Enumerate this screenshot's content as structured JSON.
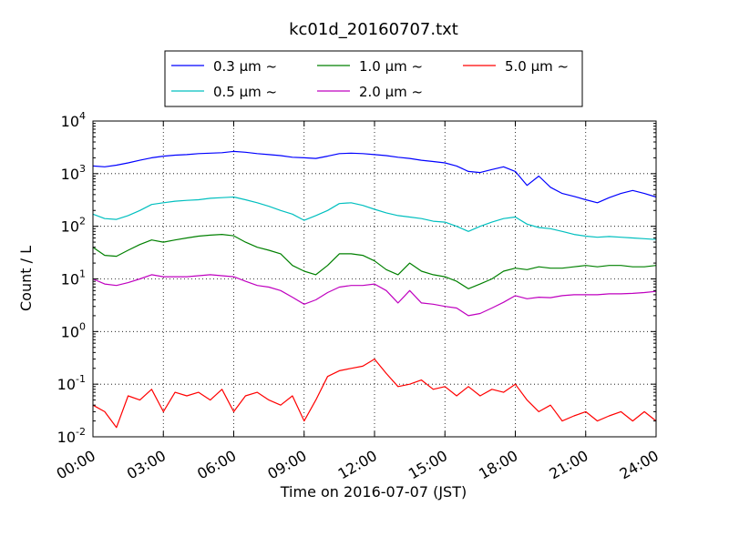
{
  "chart_data": {
    "type": "line",
    "title": "kc01d_20160707.txt",
    "xlabel": "Time on 2016-07-07 (JST)",
    "ylabel": "Count / L",
    "x_unit": "hours",
    "xlim": [
      0,
      24
    ],
    "ylim": [
      0.01,
      10000
    ],
    "yscale": "log",
    "grid": true,
    "legend_position": "top",
    "x_ticks": [
      {
        "value": 0,
        "label": "00:00"
      },
      {
        "value": 3,
        "label": "03:00"
      },
      {
        "value": 6,
        "label": "06:00"
      },
      {
        "value": 9,
        "label": "09:00"
      },
      {
        "value": 12,
        "label": "12:00"
      },
      {
        "value": 15,
        "label": "15:00"
      },
      {
        "value": 18,
        "label": "18:00"
      },
      {
        "value": 21,
        "label": "21:00"
      },
      {
        "value": 24,
        "label": "24:00"
      }
    ],
    "y_ticks": [
      {
        "value": 0.01,
        "base": "10",
        "exp": "-2"
      },
      {
        "value": 0.1,
        "base": "10",
        "exp": "-1"
      },
      {
        "value": 1,
        "base": "10",
        "exp": "0"
      },
      {
        "value": 10,
        "base": "10",
        "exp": "1"
      },
      {
        "value": 100,
        "base": "10",
        "exp": "2"
      },
      {
        "value": 1000,
        "base": "10",
        "exp": "3"
      },
      {
        "value": 10000,
        "base": "10",
        "exp": "4"
      }
    ],
    "series": [
      {
        "name": "0.3 μm ~",
        "color": "#0000ff",
        "x": [
          0,
          0.5,
          1,
          1.5,
          2,
          2.5,
          3,
          3.5,
          4,
          4.5,
          5,
          5.5,
          6,
          6.5,
          7,
          7.5,
          8,
          8.5,
          9,
          9.5,
          10,
          10.5,
          11,
          11.5,
          12,
          12.5,
          13,
          13.5,
          14,
          14.5,
          15,
          15.5,
          16,
          16.5,
          17,
          17.5,
          18,
          18.5,
          19,
          19.5,
          20,
          20.5,
          21,
          21.5,
          22,
          22.5,
          23,
          23.5,
          24
        ],
        "values": [
          1400,
          1350,
          1450,
          1600,
          1800,
          2000,
          2150,
          2250,
          2300,
          2400,
          2450,
          2500,
          2650,
          2550,
          2400,
          2300,
          2200,
          2050,
          2000,
          1950,
          2150,
          2400,
          2450,
          2400,
          2300,
          2200,
          2050,
          1950,
          1800,
          1700,
          1600,
          1400,
          1100,
          1050,
          1200,
          1350,
          1100,
          600,
          900,
          550,
          420,
          370,
          320,
          280,
          350,
          420,
          480,
          420,
          360
        ]
      },
      {
        "name": "0.5 μm ~",
        "color": "#00bfbf",
        "x": [
          0,
          0.5,
          1,
          1.5,
          2,
          2.5,
          3,
          3.5,
          4,
          4.5,
          5,
          5.5,
          6,
          6.5,
          7,
          7.5,
          8,
          8.5,
          9,
          9.5,
          10,
          10.5,
          11,
          11.5,
          12,
          12.5,
          13,
          13.5,
          14,
          14.5,
          15,
          15.5,
          16,
          16.5,
          17,
          17.5,
          18,
          18.5,
          19,
          19.5,
          20,
          20.5,
          21,
          21.5,
          22,
          22.5,
          23,
          23.5,
          24
        ],
        "values": [
          170,
          140,
          135,
          160,
          200,
          260,
          280,
          300,
          310,
          320,
          340,
          350,
          360,
          320,
          280,
          240,
          200,
          170,
          130,
          160,
          200,
          270,
          280,
          250,
          210,
          180,
          160,
          150,
          140,
          125,
          120,
          100,
          80,
          100,
          120,
          140,
          150,
          110,
          95,
          90,
          80,
          70,
          65,
          62,
          64,
          62,
          60,
          58,
          56
        ]
      },
      {
        "name": "1.0 μm ~",
        "color": "#008000",
        "x": [
          0,
          0.5,
          1,
          1.5,
          2,
          2.5,
          3,
          3.5,
          4,
          4.5,
          5,
          5.5,
          6,
          6.5,
          7,
          7.5,
          8,
          8.5,
          9,
          9.5,
          10,
          10.5,
          11,
          11.5,
          12,
          12.5,
          13,
          13.5,
          14,
          14.5,
          15,
          15.5,
          16,
          16.5,
          17,
          17.5,
          18,
          18.5,
          19,
          19.5,
          20,
          20.5,
          21,
          21.5,
          22,
          22.5,
          23,
          23.5,
          24
        ],
        "values": [
          40,
          28,
          27,
          35,
          45,
          55,
          50,
          55,
          60,
          65,
          68,
          70,
          66,
          50,
          40,
          35,
          30,
          18,
          14,
          12,
          18,
          30,
          30,
          28,
          22,
          15,
          12,
          20,
          14,
          12,
          11,
          9,
          6.5,
          8,
          10,
          14,
          16,
          15,
          17,
          16,
          16,
          17,
          18,
          17,
          18,
          18,
          17,
          17,
          18
        ]
      },
      {
        "name": "2.0 μm ~",
        "color": "#bf00bf",
        "x": [
          0,
          0.5,
          1,
          1.5,
          2,
          2.5,
          3,
          3.5,
          4,
          4.5,
          5,
          5.5,
          6,
          6.5,
          7,
          7.5,
          8,
          8.5,
          9,
          9.5,
          10,
          10.5,
          11,
          11.5,
          12,
          12.5,
          13,
          13.5,
          14,
          14.5,
          15,
          15.5,
          16,
          16.5,
          17,
          17.5,
          18,
          18.5,
          19,
          19.5,
          20,
          20.5,
          21,
          21.5,
          22,
          22.5,
          23,
          23.5,
          24
        ],
        "values": [
          10,
          8,
          7.5,
          8.5,
          10,
          12,
          11,
          11,
          11,
          11.5,
          12,
          11.5,
          11,
          9,
          7.5,
          7,
          6,
          4.5,
          3.3,
          4,
          5.5,
          7,
          7.5,
          7.5,
          8,
          6,
          3.5,
          6,
          3.5,
          3.3,
          3,
          2.8,
          2,
          2.2,
          2.8,
          3.6,
          4.8,
          4.2,
          4.5,
          4.4,
          4.8,
          5,
          5,
          5,
          5.2,
          5.2,
          5.3,
          5.5,
          5.8
        ]
      },
      {
        "name": "5.0 μm ~",
        "color": "#ff0000",
        "x": [
          0,
          0.5,
          1,
          1.5,
          2,
          2.5,
          3,
          3.5,
          4,
          4.5,
          5,
          5.5,
          6,
          6.5,
          7,
          7.5,
          8,
          8.5,
          9,
          9.5,
          10,
          10.5,
          11,
          11.5,
          12,
          12.5,
          13,
          13.5,
          14,
          14.5,
          15,
          15.5,
          16,
          16.5,
          17,
          17.5,
          18,
          18.5,
          19,
          19.5,
          20,
          20.5,
          21,
          21.5,
          22,
          22.5,
          23,
          23.5,
          24
        ],
        "values": [
          0.04,
          0.03,
          0.015,
          0.06,
          0.05,
          0.08,
          0.03,
          0.07,
          0.06,
          0.07,
          0.05,
          0.08,
          0.03,
          0.06,
          0.07,
          0.05,
          0.04,
          0.06,
          0.02,
          0.05,
          0.14,
          0.18,
          0.2,
          0.22,
          0.3,
          0.16,
          0.09,
          0.1,
          0.12,
          0.08,
          0.09,
          0.06,
          0.09,
          0.06,
          0.08,
          0.07,
          0.1,
          0.05,
          0.03,
          0.04,
          0.02,
          0.025,
          0.03,
          0.02,
          0.025,
          0.03,
          0.02,
          0.03,
          0.02
        ]
      }
    ]
  }
}
